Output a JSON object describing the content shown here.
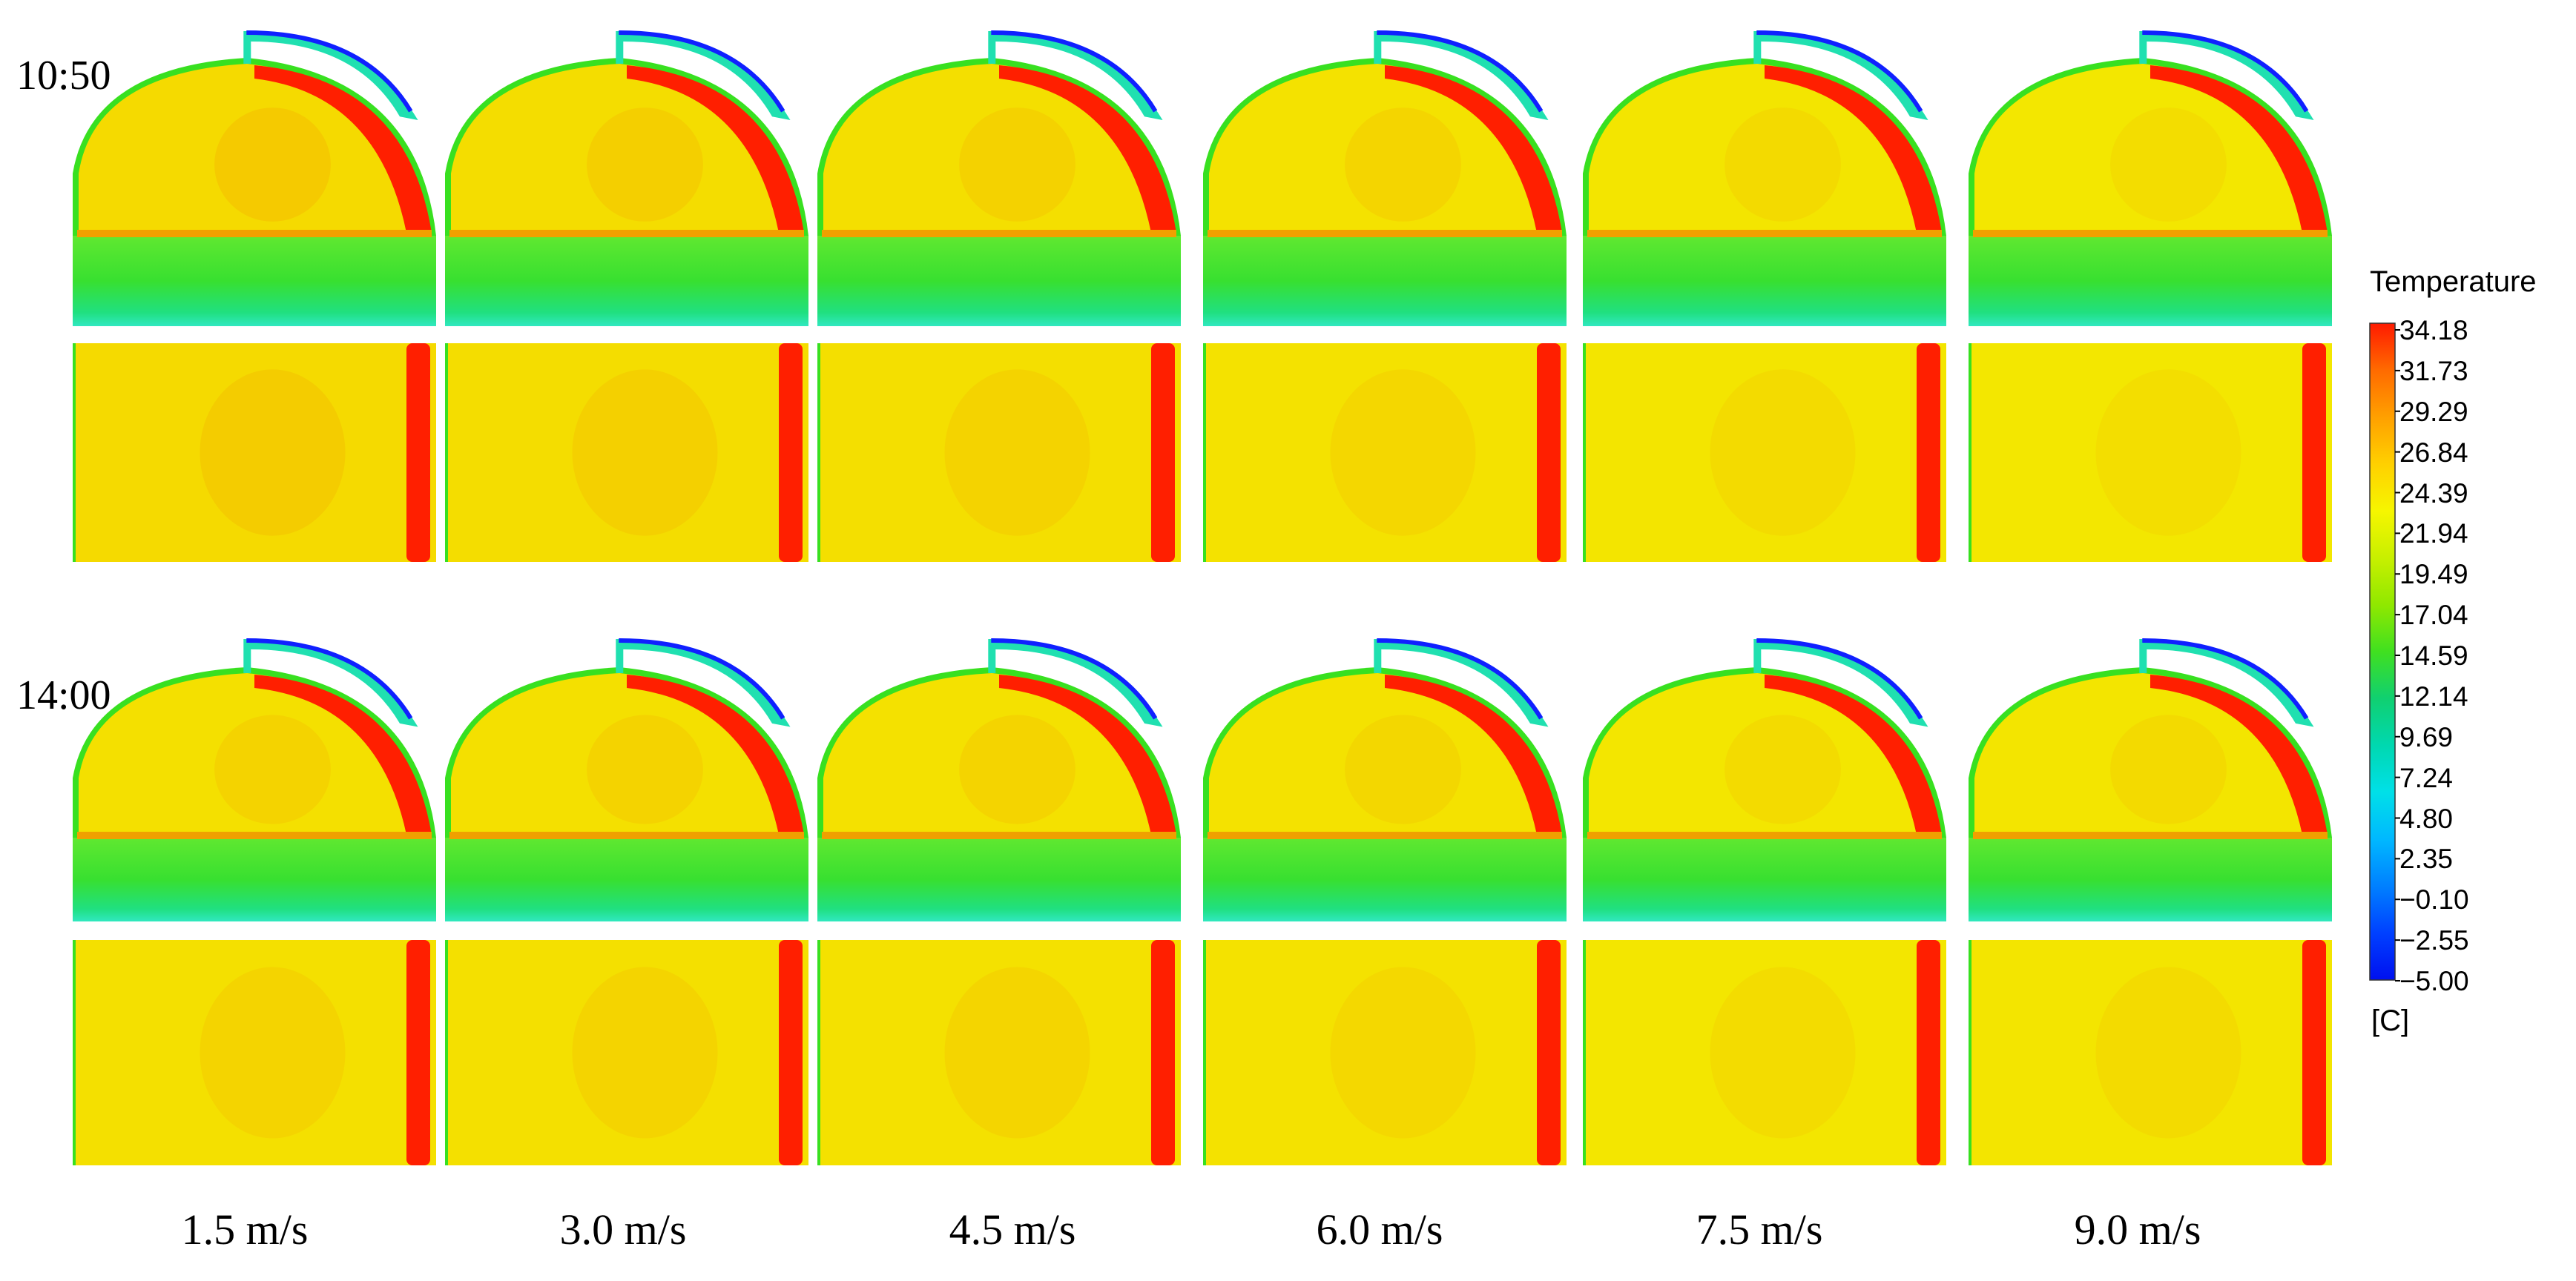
{
  "rows": [
    {
      "time": "10:50",
      "heat": [
        0.55,
        0.48,
        0.42,
        0.36,
        0.28,
        0.22
      ]
    },
    {
      "time": "14:00",
      "heat": [
        0.4,
        0.4,
        0.38,
        0.34,
        0.26,
        0.28
      ]
    }
  ],
  "columns": [
    "1.5 m/s",
    "3.0 m/s",
    "4.5 m/s",
    "6.0 m/s",
    "7.5 m/s",
    "9.0 m/s"
  ],
  "colorbar": {
    "title": "Temperature",
    "unit": "[C]",
    "ticks": [
      "34.18",
      "31.73",
      "29.29",
      "26.84",
      "24.39",
      "21.94",
      "19.49",
      "17.04",
      "14.59",
      "12.14",
      "9.69",
      "7.24",
      "4.80",
      "2.35",
      "−0.10",
      "−2.55",
      "−5.00"
    ],
    "colors": [
      "#ff1a00",
      "#ff6a00",
      "#ffa000",
      "#ffd000",
      "#f6f600",
      "#c8f000",
      "#90e800",
      "#40e020",
      "#10d070",
      "#00d8b0",
      "#00e0e8",
      "#00b8ff",
      "#0080ff",
      "#0040ff",
      "#0010f0"
    ]
  },
  "palette": {
    "red": "#ff1f00",
    "yellow": "#f2f000",
    "orange": "#f7c800",
    "green": "#38e020",
    "cyan": "#20e0b0",
    "blue": "#1020ff"
  }
}
